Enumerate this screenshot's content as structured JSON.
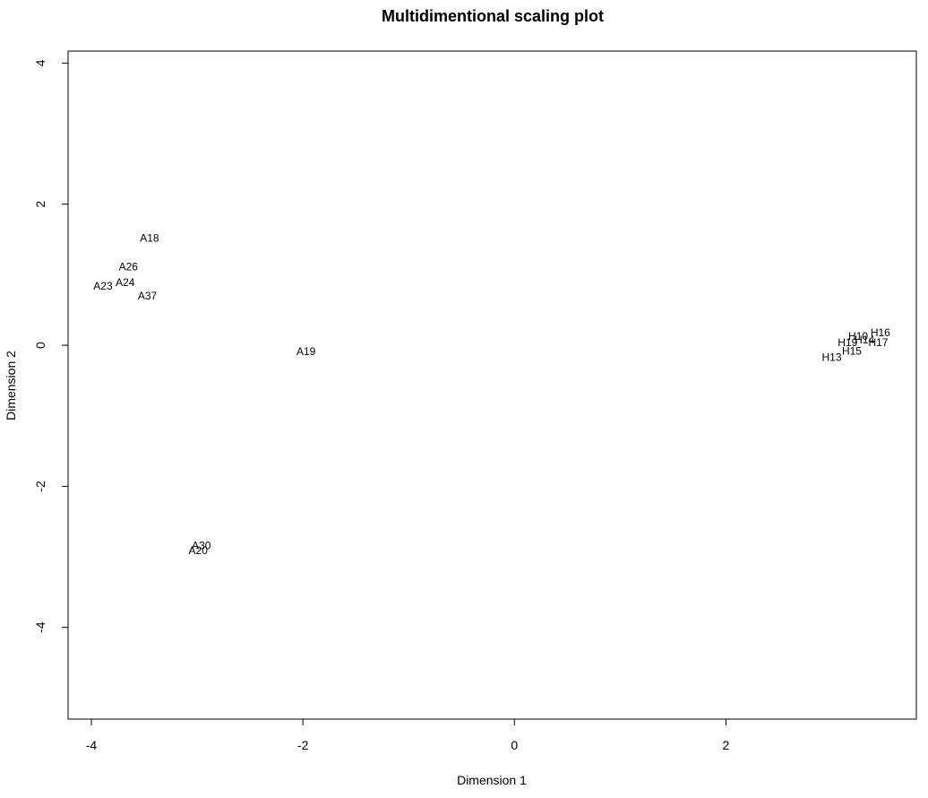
{
  "chart_data": {
    "type": "scatter",
    "title": "Multidimentional scaling plot",
    "xlabel": "Dimension 1",
    "ylabel": "Dimension 2",
    "xlim": [
      -4.22,
      3.8
    ],
    "ylim": [
      -5.3,
      4.17
    ],
    "xticks": [
      -4,
      -2,
      0,
      2
    ],
    "yticks": [
      -4,
      -2,
      0,
      2,
      4
    ],
    "grid": false,
    "points": [
      {
        "label": "A18",
        "x": -3.45,
        "y": 1.52
      },
      {
        "label": "A26",
        "x": -3.65,
        "y": 1.11
      },
      {
        "label": "A23",
        "x": -3.89,
        "y": 0.84
      },
      {
        "label": "A24",
        "x": -3.68,
        "y": 0.89
      },
      {
        "label": "A37",
        "x": -3.47,
        "y": 0.7
      },
      {
        "label": "A19",
        "x": -1.97,
        "y": -0.09
      },
      {
        "label": "A30",
        "x": -2.96,
        "y": -2.84
      },
      {
        "label": "A20",
        "x": -2.99,
        "y": -2.91
      },
      {
        "label": "H16",
        "x": 3.46,
        "y": 0.18
      },
      {
        "label": "H10",
        "x": 3.25,
        "y": 0.13
      },
      {
        "label": "H14",
        "x": 3.31,
        "y": 0.08
      },
      {
        "label": "H17",
        "x": 3.44,
        "y": 0.04
      },
      {
        "label": "H19",
        "x": 3.15,
        "y": 0.04
      },
      {
        "label": "H15",
        "x": 3.19,
        "y": -0.08
      },
      {
        "label": "H13",
        "x": 3.0,
        "y": -0.17
      }
    ]
  }
}
